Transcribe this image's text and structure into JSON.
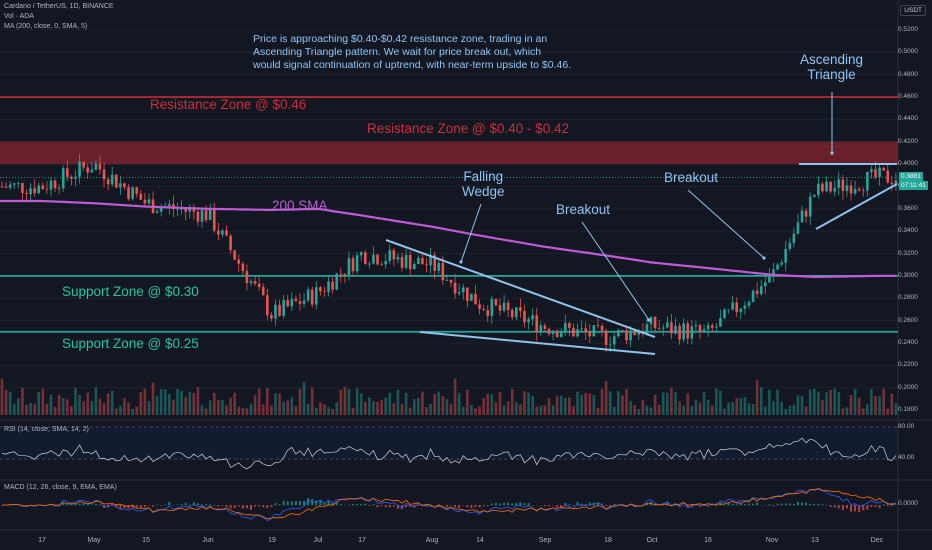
{
  "header": {
    "symbol_line": "Cardano / TetherUS, 1D, BINANCE",
    "vol_line": "Vol · ADA",
    "ma_line": "MA (200, close, 0, SMA, 5)",
    "currency": "USDT"
  },
  "notes": {
    "main": [
      "Price is approaching $0.40-$0.42 resistance zone, trading in an",
      "Ascending Triangle pattern. We wait for price break out, which",
      "would signal continuation of uptrend, with near-term upside to $0.46."
    ],
    "resistance_046": "Resistance Zone @ $0.46",
    "resistance_040": "Resistance Zone @ $0.40 - $0.42",
    "support_030": "Support Zone @ $0.30",
    "support_025": "Support Zone @ $0.25",
    "sma_label": "200 SMA",
    "falling_wedge": [
      "Falling",
      "Wedge"
    ],
    "breakout_1": "Breakout",
    "breakout_2": "Breakout",
    "asc_triangle": [
      "Ascending",
      "Triangle"
    ]
  },
  "price_axis": {
    "ticks": [
      "0.5200",
      "0.5000",
      "0.4800",
      "0.4600",
      "0.4400",
      "0.4200",
      "0.4000",
      "0.3800",
      "0.3600",
      "0.3400",
      "0.3200",
      "0.3000",
      "0.2800",
      "0.2600",
      "0.2400",
      "0.2200",
      "0.2000",
      "0.1800"
    ],
    "last_price": "0.3881",
    "countdown": "07:11:41"
  },
  "date_axis": {
    "labels": [
      "17",
      "May",
      "15",
      "Jun",
      "19",
      "Jul",
      "17",
      "Aug",
      "14",
      "Sep",
      "18",
      "Oct",
      "16",
      "Nov",
      "13",
      "Dec"
    ]
  },
  "rsi": {
    "label": "RSI (14, close, SMA, 14, 2)",
    "ticks": [
      "80.00",
      "40.00"
    ]
  },
  "macd": {
    "label": "MACD (12, 26, close, 9, EMA, EMA)",
    "tick": "0.0000"
  },
  "colors": {
    "background": "#131722",
    "up": "#26a69a",
    "down": "#ef5350",
    "resistance": "#b22833",
    "support": "#26a69a",
    "sma": "#c05bd6",
    "trendline": "#8fc4ec",
    "rsi": "#d1d4dc",
    "macd": "#2962ff",
    "signal": "#ff6d00"
  },
  "chart_data": {
    "type": "candlestick",
    "title": "Cardano / TetherUS, 1D, BINANCE",
    "x": [
      "Apr 17",
      "May 1",
      "May 15",
      "Jun 1",
      "Jun 19",
      "Jul 1",
      "Jul 17",
      "Aug 1",
      "Aug 14",
      "Sep 1",
      "Sep 18",
      "Oct 1",
      "Oct 16",
      "Nov 1",
      "Nov 13",
      "Dec 1"
    ],
    "close": [
      0.38,
      0.4,
      0.365,
      0.355,
      0.265,
      0.285,
      0.32,
      0.31,
      0.275,
      0.255,
      0.245,
      0.255,
      0.248,
      0.3,
      0.375,
      0.388
    ],
    "sma200": [
      0.367,
      0.365,
      0.362,
      0.36,
      0.359,
      0.36,
      0.354,
      0.344,
      0.336,
      0.326,
      0.318,
      0.312,
      0.307,
      0.301,
      0.299,
      0.3
    ],
    "ylim": [
      0.17,
      0.53
    ],
    "resistance_zones": [
      [
        0.46,
        0.46
      ],
      [
        0.4,
        0.42
      ]
    ],
    "support_levels": [
      0.3,
      0.25
    ],
    "last_price": 0.3881
  }
}
